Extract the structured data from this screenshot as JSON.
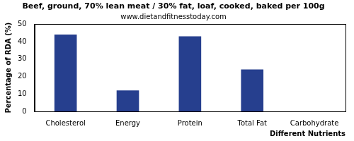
{
  "chart_data": {
    "type": "bar",
    "title": "Beef, ground, 70% lean meat / 30% fat, loaf, cooked, baked per 100g",
    "subtitle": "www.dietandfitnesstoday.com",
    "x_label": "Different Nutrients",
    "y_label": "Percentage of RDA (%)",
    "categories": [
      "Cholesterol",
      "Energy",
      "Protein",
      "Total Fat",
      "Carbohydrate"
    ],
    "values": [
      44,
      12,
      43,
      24,
      0
    ],
    "color": "#263f8e",
    "ylim": [
      0,
      50
    ],
    "yticks": [
      0,
      10,
      20,
      30,
      40,
      50
    ],
    "grid": false
  }
}
